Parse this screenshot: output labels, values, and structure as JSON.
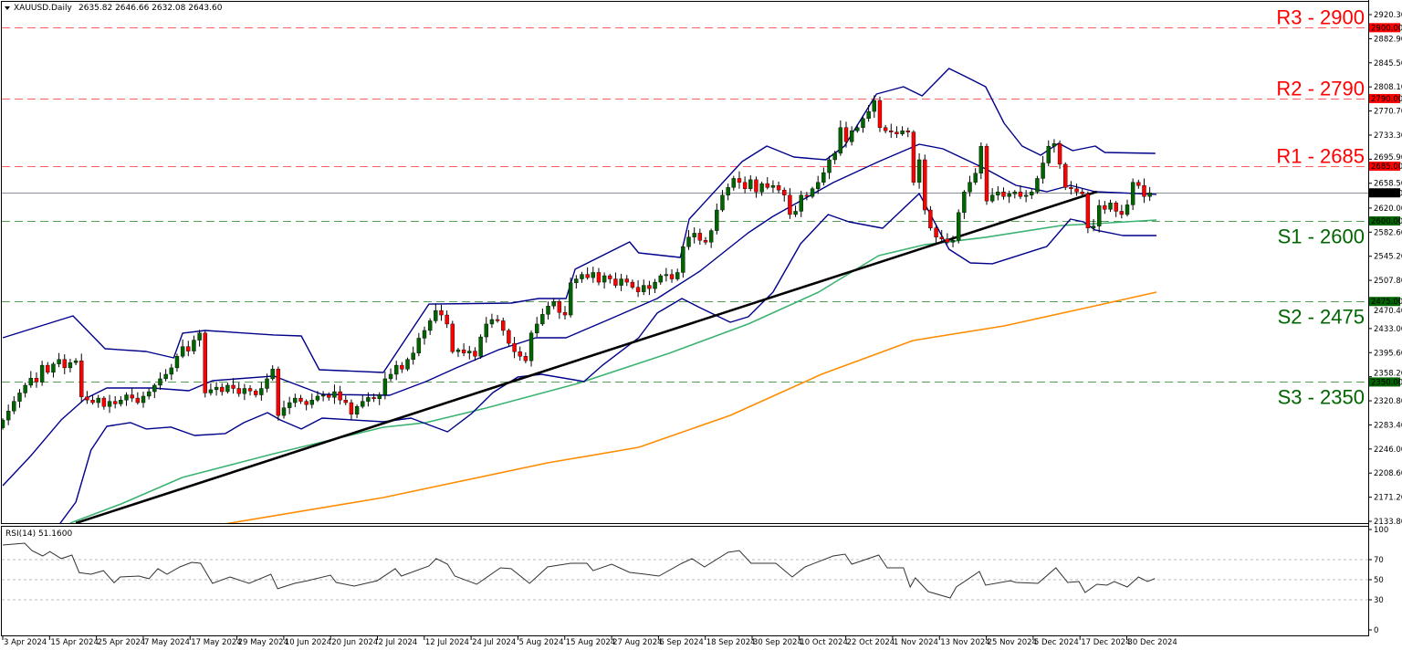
{
  "header": {
    "symbol": "XAUUSD.Daily",
    "ohlc": "2635.82 2646.66 2632.08 2643.60"
  },
  "rsi_header": "RSI(14) 51.1600",
  "colors": {
    "bull": "#006400",
    "bear": "#ff0000",
    "bands": "#00008b",
    "ma100": "#3cb371",
    "ma200": "#ff8c00",
    "trend": "#000000",
    "resistance": "#ff0000",
    "support": "#006400",
    "current": "#000000"
  },
  "chart_data": [
    {
      "type": "candlestick",
      "title": "XAUUSD.Daily",
      "ylim": [
        2133.8,
        2920.3
      ],
      "y_ticks": [
        "2920.30",
        "2882.90",
        "2845.50",
        "2808.10",
        "2770.70",
        "2733.30",
        "2695.90",
        "2658.50",
        "2620.00",
        "2582.60",
        "2545.20",
        "2507.80",
        "2470.40",
        "2433.00",
        "2395.60",
        "2358.20",
        "2320.80",
        "2283.40",
        "2246.00",
        "2208.60",
        "2171.20",
        "2133.80"
      ],
      "x_ticks": [
        "3 Apr 2024",
        "15 Apr 2024",
        "25 Apr 2024",
        "7 May 2024",
        "17 May 2024",
        "29 May 2024",
        "10 Jun 2024",
        "20 Jun 2024",
        "2 Jul 2024",
        "12 Jul 2024",
        "24 Jul 2024",
        "5 Aug 2024",
        "15 Aug 2024",
        "27 Aug 2024",
        "6 Sep 2024",
        "18 Sep 2024",
        "30 Sep 2024",
        "10 Oct 2024",
        "22 Oct 2024",
        "1 Nov 2024",
        "13 Nov 2024",
        "25 Nov 2024",
        "5 Dec 2024",
        "17 Dec 2024",
        "30 Dec 2024"
      ],
      "x_tick_bar_step": 8.33,
      "closes": [
        2291,
        2305,
        2320,
        2333,
        2345,
        2356,
        2350,
        2376,
        2365,
        2378,
        2385,
        2372,
        2380,
        2383,
        2327,
        2322,
        2318,
        2325,
        2312,
        2320,
        2316,
        2322,
        2330,
        2325,
        2318,
        2328,
        2335,
        2345,
        2355,
        2362,
        2372,
        2390,
        2405,
        2398,
        2415,
        2426,
        2333,
        2338,
        2342,
        2335,
        2345,
        2340,
        2332,
        2340,
        2336,
        2330,
        2340,
        2355,
        2370,
        2298,
        2310,
        2318,
        2325,
        2320,
        2315,
        2322,
        2328,
        2330,
        2326,
        2335,
        2322,
        2318,
        2300,
        2312,
        2320,
        2326,
        2324,
        2330,
        2355,
        2362,
        2376,
        2370,
        2385,
        2395,
        2418,
        2430,
        2445,
        2461,
        2454,
        2440,
        2397,
        2400,
        2395,
        2398,
        2390,
        2420,
        2440,
        2447,
        2445,
        2430,
        2410,
        2397,
        2390,
        2383,
        2426,
        2440,
        2455,
        2468,
        2475,
        2458,
        2454,
        2504,
        2510,
        2517,
        2512,
        2520,
        2505,
        2515,
        2510,
        2500,
        2510,
        2505,
        2497,
        2490,
        2500,
        2495,
        2505,
        2515,
        2517,
        2510,
        2520,
        2560,
        2575,
        2581,
        2570,
        2567,
        2585,
        2617,
        2640,
        2652,
        2666,
        2660,
        2650,
        2664,
        2645,
        2658,
        2652,
        2655,
        2648,
        2640,
        2610,
        2615,
        2640,
        2638,
        2650,
        2660,
        2675,
        2695,
        2705,
        2745,
        2723,
        2740,
        2745,
        2759,
        2770,
        2787,
        2745,
        2740,
        2738,
        2735,
        2740,
        2738,
        2660,
        2695,
        2617,
        2589,
        2575,
        2572,
        2567,
        2570,
        2613,
        2645,
        2660,
        2674,
        2716,
        2631,
        2640,
        2645,
        2638,
        2642,
        2645,
        2638,
        2640,
        2645,
        2666,
        2690,
        2716,
        2720,
        2688,
        2652,
        2650,
        2645,
        2642,
        2589,
        2592,
        2624,
        2618,
        2628,
        2615,
        2610,
        2625,
        2660,
        2655,
        2638,
        2643.6
      ],
      "current_price": {
        "value": 2643.6,
        "label": "2643.60"
      },
      "levels": [
        {
          "name": "R3",
          "value": 2900,
          "text": "R3 - 2900",
          "tag": "2900.00",
          "kind": "resistance"
        },
        {
          "name": "R2",
          "value": 2790,
          "text": "R2 - 2790",
          "tag": "2790.00",
          "kind": "resistance"
        },
        {
          "name": "R1",
          "value": 2685,
          "text": "R1 - 2685",
          "tag": "2685.00",
          "kind": "resistance"
        },
        {
          "name": "S1",
          "value": 2600,
          "text": "S1 - 2600",
          "tag": "2600.00",
          "kind": "support"
        },
        {
          "name": "S2",
          "value": 2475,
          "text": "S2 - 2475",
          "tag": "2475.00",
          "kind": "support"
        },
        {
          "name": "S3",
          "value": 2350,
          "text": "S3 - 2350",
          "tag": "2350.00",
          "kind": "support"
        }
      ],
      "overlays": {
        "bb_upper": [
          [
            0,
            2418.7
          ],
          [
            12.5,
            2452.7
          ],
          [
            18.2,
            2401.7
          ],
          [
            25.5,
            2397.4
          ],
          [
            30.4,
            2387.5
          ],
          [
            32,
            2425.8
          ],
          [
            36,
            2430
          ],
          [
            48.2,
            2423
          ],
          [
            53.1,
            2421.5
          ],
          [
            56.3,
            2369
          ],
          [
            67.7,
            2364.8
          ],
          [
            75.8,
            2471
          ],
          [
            90.4,
            2472.5
          ],
          [
            95.3,
            2479.6
          ],
          [
            100.2,
            2479.6
          ],
          [
            101.8,
            2525
          ],
          [
            111.5,
            2567.5
          ],
          [
            113.1,
            2550.5
          ],
          [
            120.5,
            2543.4
          ],
          [
            122.1,
            2602.9
          ],
          [
            131.5,
            2692.2
          ],
          [
            135.9,
            2716.3
          ],
          [
            140.7,
            2699.3
          ],
          [
            146.4,
            2695
          ],
          [
            149.7,
            2716.3
          ],
          [
            155.4,
            2797
          ],
          [
            160.2,
            2808.4
          ],
          [
            163.5,
            2794.2
          ],
          [
            168.3,
            2836.7
          ],
          [
            171.6,
            2822.5
          ],
          [
            174.8,
            2808.4
          ],
          [
            178.1,
            2751.7
          ],
          [
            181.3,
            2716.3
          ],
          [
            184.6,
            2702.1
          ],
          [
            187.8,
            2720.5
          ],
          [
            190.3,
            2709.2
          ],
          [
            194.3,
            2716.3
          ],
          [
            196,
            2706.3
          ],
          [
            205,
            2704.9
          ]
        ],
        "bb_middle": [
          [
            0,
            2189.1
          ],
          [
            4.9,
            2234.5
          ],
          [
            10.4,
            2291.2
          ],
          [
            14.6,
            2323.7
          ],
          [
            18.5,
            2340.7
          ],
          [
            26.6,
            2340.7
          ],
          [
            33.1,
            2336.5
          ],
          [
            37.3,
            2352.1
          ],
          [
            48.2,
            2359.2
          ],
          [
            56.8,
            2330.8
          ],
          [
            68.8,
            2329.4
          ],
          [
            75.3,
            2350.7
          ],
          [
            80.7,
            2372
          ],
          [
            88.3,
            2400.3
          ],
          [
            94.8,
            2418.7
          ],
          [
            100.2,
            2418.7
          ],
          [
            107.8,
            2447
          ],
          [
            116.4,
            2479.6
          ],
          [
            124,
            2522.1
          ],
          [
            132.6,
            2581.6
          ],
          [
            137,
            2607.1
          ],
          [
            147.7,
            2659.6
          ],
          [
            155.8,
            2692.2
          ],
          [
            163,
            2719.1
          ],
          [
            167.2,
            2712
          ],
          [
            174.8,
            2680.8
          ],
          [
            180.2,
            2655.3
          ],
          [
            185.7,
            2645.4
          ],
          [
            189.9,
            2655.3
          ],
          [
            194.3,
            2645.4
          ],
          [
            205.2,
            2641.2
          ]
        ],
        "bb_lower": [
          [
            10,
            2128.2
          ],
          [
            13,
            2163.6
          ],
          [
            15.7,
            2244.4
          ],
          [
            18.5,
            2281.2
          ],
          [
            22.7,
            2287
          ],
          [
            25.5,
            2277
          ],
          [
            29.9,
            2280
          ],
          [
            34.1,
            2267
          ],
          [
            39.6,
            2270
          ],
          [
            42.9,
            2287
          ],
          [
            47.1,
            2302.5
          ],
          [
            49.4,
            2291
          ],
          [
            53.1,
            2277
          ],
          [
            56.8,
            2294
          ],
          [
            67.7,
            2288.3
          ],
          [
            72.6,
            2294
          ],
          [
            79.1,
            2272.7
          ],
          [
            83.4,
            2301
          ],
          [
            87.2,
            2333.7
          ],
          [
            91.6,
            2357.7
          ],
          [
            95.8,
            2362
          ],
          [
            103.4,
            2350.7
          ],
          [
            106.7,
            2376.2
          ],
          [
            113.1,
            2418.7
          ],
          [
            116.4,
            2457
          ],
          [
            120.8,
            2479.6
          ],
          [
            124,
            2465.4
          ],
          [
            129.4,
            2442.8
          ],
          [
            132.6,
            2451.3
          ],
          [
            137,
            2489.5
          ],
          [
            141.9,
            2564.6
          ],
          [
            146.8,
            2610
          ],
          [
            150.5,
            2598.6
          ],
          [
            156.5,
            2588.7
          ],
          [
            163,
            2642.6
          ],
          [
            168.3,
            2556.1
          ],
          [
            172.1,
            2534.9
          ],
          [
            176,
            2533.5
          ],
          [
            185.7,
            2560.4
          ],
          [
            189.9,
            2602.9
          ],
          [
            192.2,
            2598.6
          ],
          [
            194.3,
            2586
          ],
          [
            199.2,
            2577.4
          ],
          [
            205.2,
            2577.4
          ]
        ],
        "ma100": [
          [
            12,
            2131
          ],
          [
            21.1,
            2160.8
          ],
          [
            32,
            2201.9
          ],
          [
            48.2,
            2238.7
          ],
          [
            67.7,
            2279.8
          ],
          [
            75.3,
            2287
          ],
          [
            86,
            2309.6
          ],
          [
            102.3,
            2347.8
          ],
          [
            118.5,
            2394.6
          ],
          [
            132.6,
            2440
          ],
          [
            145.1,
            2489.5
          ],
          [
            155.8,
            2546.2
          ],
          [
            164,
            2563.2
          ],
          [
            174.8,
            2574.6
          ],
          [
            188.3,
            2593
          ],
          [
            194.3,
            2595.8
          ],
          [
            205.2,
            2601.5
          ]
        ],
        "ma200": [
          [
            38.5,
            2128.2
          ],
          [
            67.7,
            2170.7
          ],
          [
            96.9,
            2224.5
          ],
          [
            113.1,
            2248.6
          ],
          [
            129.4,
            2298.2
          ],
          [
            145.6,
            2362
          ],
          [
            161.9,
            2414.4
          ],
          [
            178.1,
            2437.1
          ],
          [
            194.3,
            2468.3
          ],
          [
            205.2,
            2489.5
          ]
        ],
        "trendline": [
          [
            13,
            2131
          ],
          [
            194.6,
            2645.4
          ]
        ]
      }
    },
    {
      "type": "line",
      "title": "RSI(14)",
      "ylim": [
        0,
        100
      ],
      "y_ticks": [
        "100",
        "70",
        "50",
        "30",
        "0"
      ],
      "levels": [
        70,
        50,
        30
      ],
      "points": [
        [
          0,
          84.5
        ],
        [
          3.9,
          86.4
        ],
        [
          5.2,
          79
        ],
        [
          7.1,
          73.6
        ],
        [
          8.4,
          78
        ],
        [
          10.4,
          71
        ],
        [
          12.3,
          74.5
        ],
        [
          13.6,
          57
        ],
        [
          15.7,
          55.5
        ],
        [
          17.9,
          59
        ],
        [
          19.8,
          47
        ],
        [
          20.9,
          52.7
        ],
        [
          24.2,
          53.6
        ],
        [
          26,
          51
        ],
        [
          27.6,
          61
        ],
        [
          29.2,
          55.5
        ],
        [
          31.5,
          62.7
        ],
        [
          33.6,
          67.3
        ],
        [
          35.2,
          66.4
        ],
        [
          37.3,
          46.4
        ],
        [
          40.4,
          52.7
        ],
        [
          43.8,
          46.4
        ],
        [
          47.7,
          55.5
        ],
        [
          48.9,
          41
        ],
        [
          51.9,
          46.4
        ],
        [
          54.2,
          49
        ],
        [
          58.3,
          54.5
        ],
        [
          59.3,
          47.3
        ],
        [
          62.5,
          43.6
        ],
        [
          66.6,
          49
        ],
        [
          69.8,
          61
        ],
        [
          70.9,
          53.6
        ],
        [
          75.8,
          63.6
        ],
        [
          77.1,
          71
        ],
        [
          79.1,
          65.5
        ],
        [
          80.4,
          53.6
        ],
        [
          84.3,
          45.5
        ],
        [
          88.5,
          61.8
        ],
        [
          90.4,
          61
        ],
        [
          93.7,
          46.4
        ],
        [
          96.9,
          62.7
        ],
        [
          101,
          66.4
        ],
        [
          103.9,
          66.4
        ],
        [
          105,
          59
        ],
        [
          108.3,
          65.5
        ],
        [
          111.5,
          57.3
        ],
        [
          114.3,
          55.5
        ],
        [
          116.7,
          53.6
        ],
        [
          120.8,
          66.4
        ],
        [
          122.6,
          71
        ],
        [
          124.8,
          62.7
        ],
        [
          129,
          77.3
        ],
        [
          131,
          79
        ],
        [
          133.1,
          66.4
        ],
        [
          137.5,
          66.4
        ],
        [
          140.4,
          52.7
        ],
        [
          142.7,
          62.7
        ],
        [
          147.7,
          73.6
        ],
        [
          149.8,
          75.5
        ],
        [
          151,
          65.5
        ],
        [
          155.8,
          74.5
        ],
        [
          157.3,
          61.8
        ],
        [
          160.2,
          61.8
        ],
        [
          161.4,
          42.7
        ],
        [
          162.3,
          51.8
        ],
        [
          164.6,
          38.2
        ],
        [
          168.5,
          31.8
        ],
        [
          169.6,
          42.7
        ],
        [
          173.7,
          58.2
        ],
        [
          174.8,
          44.5
        ],
        [
          179.2,
          49
        ],
        [
          180.2,
          47.3
        ],
        [
          184.1,
          46.4
        ],
        [
          187.3,
          61.8
        ],
        [
          189.4,
          47.3
        ],
        [
          191.4,
          48.2
        ],
        [
          192.5,
          37.3
        ],
        [
          194.6,
          45.5
        ],
        [
          196.4,
          44.5
        ],
        [
          197.7,
          48.2
        ],
        [
          200,
          42.7
        ],
        [
          202,
          52.7
        ],
        [
          203.6,
          48.2
        ],
        [
          204.9,
          51.16
        ]
      ]
    }
  ]
}
